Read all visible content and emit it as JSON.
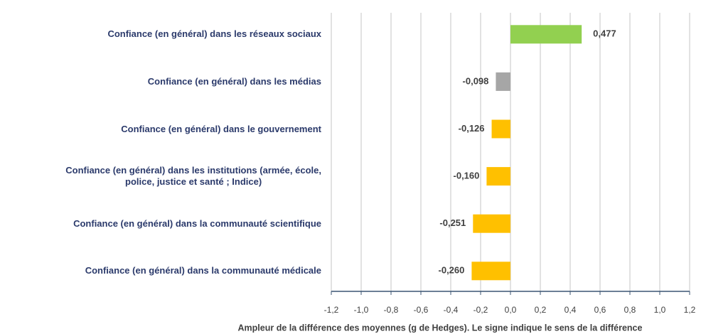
{
  "chart_data": {
    "type": "bar",
    "orientation": "horizontal",
    "categories": [
      "Confiance (en général) dans les réseaux sociaux",
      "Confiance (en général) dans les médias",
      "Confiance (en général) dans le gouvernement",
      "Confiance (en général) dans les institutions (armée, école,\npolice, justice et santé ; Indice)",
      "Confiance (en général) dans la communauté scientifique",
      "Confiance (en général) dans la communauté médicale"
    ],
    "values": [
      0.477,
      -0.098,
      -0.126,
      -0.16,
      -0.251,
      -0.26
    ],
    "value_labels": [
      "0,477",
      "-0,098",
      "-0,126",
      "-0,160",
      "-0,251",
      "-0,260"
    ],
    "colors": [
      "#92d050",
      "#a6a6a6",
      "#ffc000",
      "#ffc000",
      "#ffc000",
      "#ffc000"
    ],
    "xlabel": "Ampleur de la différence des moyennes (g de Hedges). Le signe indique le sens de la différence",
    "xlim": [
      -1.2,
      1.2
    ],
    "xticks": [
      {
        "value": -1.2,
        "label": "-1,2"
      },
      {
        "value": -1.0,
        "label": "-1,0"
      },
      {
        "value": -0.8,
        "label": "-0,8"
      },
      {
        "value": -0.6,
        "label": "-0,6"
      },
      {
        "value": -0.4,
        "label": "-0,4"
      },
      {
        "value": -0.2,
        "label": "-0,2"
      },
      {
        "value": 0.0,
        "label": "0,0"
      },
      {
        "value": 0.2,
        "label": "0,2"
      },
      {
        "value": 0.4,
        "label": "0,4"
      },
      {
        "value": 0.6,
        "label": "0,6"
      },
      {
        "value": 0.8,
        "label": "0,8"
      },
      {
        "value": 1.0,
        "label": "1,0"
      },
      {
        "value": 1.2,
        "label": "1,2"
      }
    ],
    "grid": true
  }
}
